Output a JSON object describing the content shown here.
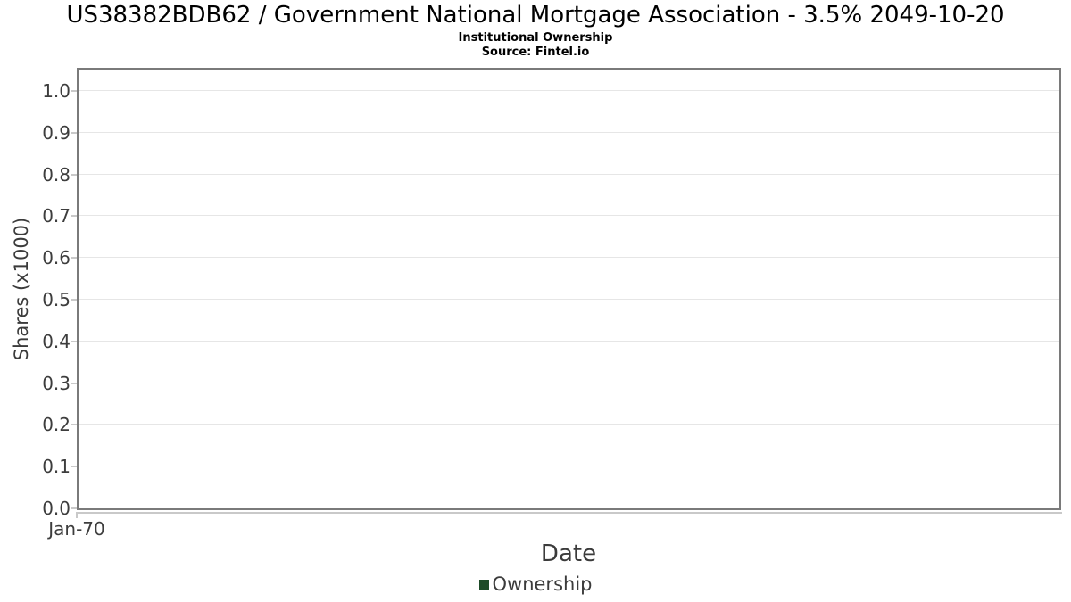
{
  "colors": {
    "background": "#ffffff",
    "plot_border": "#7a7a7a",
    "gridline": "#e6e6e6",
    "axis_line": "#c9c9c9",
    "tick_text": "#3d3d3d",
    "axis_label_text": "#3b3b3b",
    "title_text": "#000000",
    "legend_marker": "#1e4b28"
  },
  "header": {
    "title": "US38382BDB62 / Government National Mortgage Association - 3.5% 2049-10-20",
    "subtitle": "Institutional Ownership",
    "source": "Source: Fintel.io"
  },
  "chart_data": {
    "type": "line",
    "title": "US38382BDB62 / Government National Mortgage Association - 3.5% 2049-10-20",
    "subtitle": "Institutional Ownership",
    "source": "Source: Fintel.io",
    "xlabel": "Date",
    "ylabel": "Shares (x1000)",
    "x_tick_labels": [
      "Jan-70"
    ],
    "y_ticks": [
      0.0,
      0.1,
      0.2,
      0.3,
      0.4,
      0.5,
      0.6,
      0.7,
      0.8,
      0.9,
      1.0
    ],
    "y_tick_labels": [
      "0.0",
      "0.1",
      "0.2",
      "0.3",
      "0.4",
      "0.5",
      "0.6",
      "0.7",
      "0.8",
      "0.9",
      "1.0"
    ],
    "ylim": [
      0,
      1.05
    ],
    "grid": "horizontal",
    "legend_position": "bottom-center",
    "series": [
      {
        "name": "Ownership",
        "color": "#1e4b28",
        "x": [],
        "values": []
      }
    ]
  }
}
